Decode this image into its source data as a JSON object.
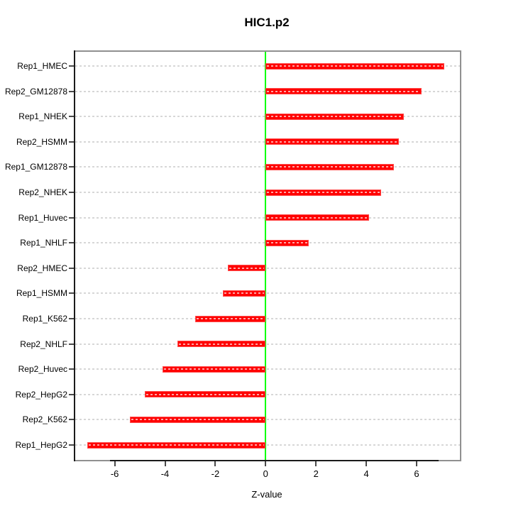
{
  "chart_data": {
    "type": "bar",
    "orientation": "horizontal",
    "title": "HIC1.p2",
    "xlabel": "Z-value",
    "ylabel": "",
    "categories": [
      "Rep1_HMEC",
      "Rep2_GM12878",
      "Rep1_NHEK",
      "Rep2_HSMM",
      "Rep1_GM12878",
      "Rep2_NHEK",
      "Rep1_Huvec",
      "Rep1_NHLF",
      "Rep2_HMEC",
      "Rep1_HSMM",
      "Rep1_K562",
      "Rep2_NHLF",
      "Rep2_Huvec",
      "Rep2_HepG2",
      "Rep2_K562",
      "Rep1_HepG2"
    ],
    "values": [
      7.1,
      6.2,
      5.5,
      5.3,
      5.1,
      4.6,
      4.1,
      1.7,
      -1.5,
      -1.7,
      -2.8,
      -3.5,
      -4.1,
      -4.8,
      -5.4,
      -7.1
    ],
    "x_ticks": [
      -6,
      -4,
      -2,
      0,
      2,
      4,
      6
    ],
    "xlim": [
      -7.6,
      7.7
    ],
    "grid": "horizontal dashed line per category",
    "legend": "none",
    "colors": {
      "bar": "#ff0000",
      "zero_line": "#00ff00",
      "grid": "#d7d7d7",
      "frame": "#909090",
      "axis": "#1a1a1a",
      "text": "#000000",
      "background": "#ffffff"
    }
  }
}
